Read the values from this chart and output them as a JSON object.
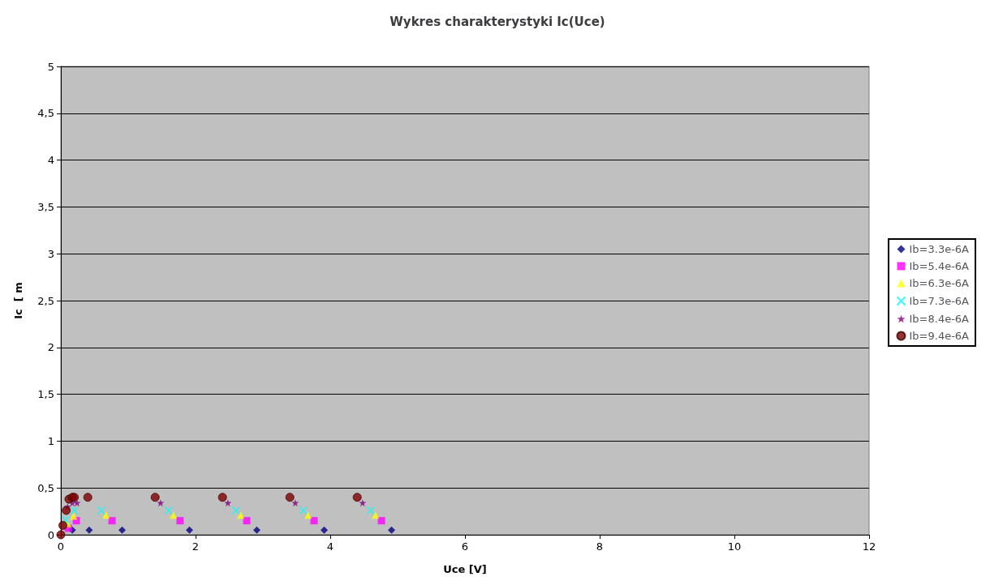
{
  "chart_data": {
    "type": "scatter",
    "title": "Wykres charakterystyki Ic(Uce)",
    "xlabel": "Uce [V]",
    "ylabel": "Ic  [ m",
    "xlim": [
      0,
      12
    ],
    "xticks": [
      0,
      2,
      4,
      6,
      8,
      10,
      12
    ],
    "ylim": [
      0,
      5
    ],
    "yticks": [
      0,
      {
        "value": 0.5,
        "label": "0,5"
      },
      1,
      {
        "value": 1.5,
        "label": "1,5"
      },
      2,
      {
        "value": 2.5,
        "label": "2,5"
      },
      3,
      {
        "value": 3.5,
        "label": "3,5"
      },
      4,
      {
        "value": 4.5,
        "label": "4,5"
      },
      5
    ],
    "grid": "y",
    "legend": "right",
    "series": [
      {
        "name": "Ib=3.3e-6A",
        "color": "#000080",
        "marker": "diamond",
        "x": [
          0.17,
          0.42,
          0.91,
          1.91,
          2.91,
          3.91,
          4.91
        ],
        "values": [
          0.05,
          0.05,
          0.05,
          0.05,
          0.05,
          0.05,
          0.05
        ]
      },
      {
        "name": "Ib=5.4e-6A",
        "color": "#ff00ff",
        "marker": "square",
        "x": [
          0.11,
          0.23,
          0.76,
          1.77,
          2.76,
          3.76,
          4.76
        ],
        "values": [
          0.07,
          0.15,
          0.15,
          0.15,
          0.15,
          0.15,
          0.15
        ]
      },
      {
        "name": "Ib=6.3e-6A",
        "color": "#ffff00",
        "marker": "triangle",
        "x": [
          0.1,
          0.19,
          0.67,
          1.67,
          2.67,
          3.67,
          4.67
        ],
        "values": [
          0.12,
          0.2,
          0.21,
          0.21,
          0.21,
          0.21,
          0.21
        ]
      },
      {
        "name": "Ib=7.3e-6A",
        "color": "#00ffff",
        "marker": "cross",
        "x": [
          0.07,
          0.2,
          0.6,
          1.6,
          2.6,
          3.6,
          4.6
        ],
        "values": [
          0.16,
          0.26,
          0.26,
          0.26,
          0.26,
          0.26,
          0.26
        ]
      },
      {
        "name": "Ib=8.4e-6A",
        "color": "#800080",
        "marker": "star",
        "x": [
          0.1,
          0.17,
          0.24,
          1.48,
          2.48,
          3.48,
          4.48
        ],
        "values": [
          0.3,
          0.34,
          0.34,
          0.34,
          0.34,
          0.34,
          0.34
        ]
      },
      {
        "name": "Ib=9.4e-6A",
        "color": "#800000",
        "marker": "circle",
        "x": [
          0,
          0.03,
          0.08,
          0.12,
          0.17,
          0.2,
          0.4,
          1.4,
          2.4,
          3.4,
          4.4
        ],
        "values": [
          0,
          0.1,
          0.26,
          0.38,
          0.4,
          0.4,
          0.4,
          0.4,
          0.4,
          0.4,
          0.4
        ]
      }
    ]
  }
}
